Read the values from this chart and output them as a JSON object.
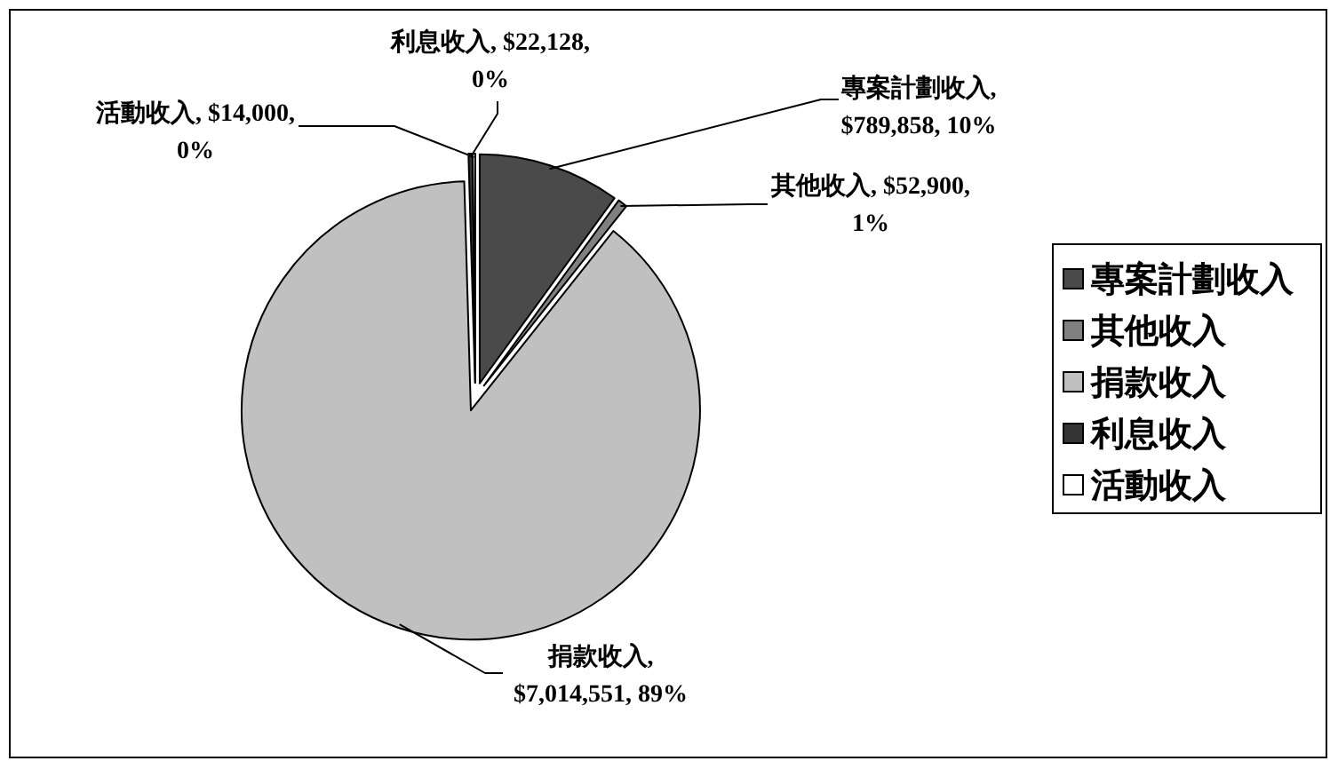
{
  "chart_data": {
    "type": "pie",
    "categories": [
      "專案計劃收入",
      "其他收入",
      "捐款收入",
      "利息收入",
      "活動收入"
    ],
    "values": [
      789858,
      52900,
      7014551,
      22128,
      14000
    ],
    "colors": [
      "#4a4a4a",
      "#808080",
      "#c0c0c0",
      "#333333",
      "#ffffff"
    ],
    "value_labels": [
      "專案計劃收入, $789,858, 10%",
      "其他收入, $52,900, 1%",
      "捐款收入, $7,014,551, 89%",
      "利息收入, $22,128, 0%",
      "活動收入, $14,000, 0%"
    ],
    "legend": "right"
  }
}
